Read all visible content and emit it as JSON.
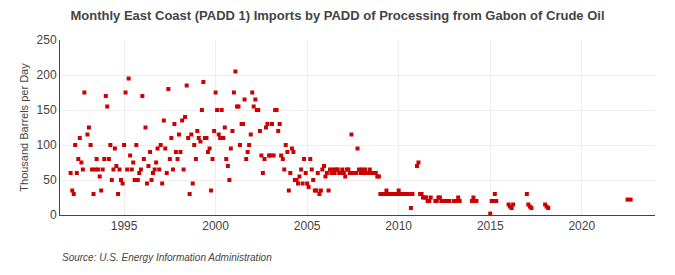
{
  "chart_data": {
    "type": "scatter",
    "title": "Monthly East Coast (PADD 1) Imports by PADD of Processing from Gabon of Crude Oil",
    "ylabel": "Thousand Barrels per Day",
    "annotations": [
      "Source: U.S. Energy Information Administration"
    ],
    "color": "#cc0000",
    "marker": "square",
    "grid": true,
    "xlim": [
      1991.5,
      2024
    ],
    "ylim": [
      0,
      250
    ],
    "xticks": [
      1995,
      2000,
      2005,
      2010,
      2015,
      2020
    ],
    "yticks": [
      0,
      50,
      100,
      150,
      200,
      250
    ],
    "x": [
      1992.08,
      1992.17,
      1992.25,
      1992.33,
      1992.42,
      1992.5,
      1992.58,
      1992.67,
      1992.75,
      1992.83,
      1993.0,
      1993.08,
      1993.17,
      1993.25,
      1993.33,
      1993.42,
      1993.5,
      1993.58,
      1993.67,
      1993.75,
      1993.83,
      1993.92,
      1994.0,
      1994.08,
      1994.17,
      1994.25,
      1994.33,
      1994.42,
      1994.5,
      1994.58,
      1994.67,
      1994.75,
      1994.83,
      1994.92,
      1995.0,
      1995.08,
      1995.17,
      1995.25,
      1995.33,
      1995.42,
      1995.5,
      1995.58,
      1995.67,
      1995.75,
      1995.83,
      1995.92,
      1996.0,
      1996.08,
      1996.17,
      1996.25,
      1996.33,
      1996.42,
      1996.5,
      1996.58,
      1996.67,
      1996.75,
      1996.83,
      1996.92,
      1997.0,
      1997.08,
      1997.17,
      1997.25,
      1997.33,
      1997.42,
      1997.5,
      1997.58,
      1997.67,
      1997.75,
      1997.83,
      1997.92,
      1998.0,
      1998.08,
      1998.17,
      1998.25,
      1998.33,
      1998.42,
      1998.5,
      1998.58,
      1998.67,
      1998.75,
      1998.83,
      1998.92,
      1999.0,
      1999.08,
      1999.17,
      1999.25,
      1999.33,
      1999.42,
      1999.5,
      1999.58,
      1999.67,
      1999.75,
      1999.83,
      1999.92,
      2000.0,
      2000.08,
      2000.17,
      2000.25,
      2000.33,
      2000.42,
      2000.5,
      2000.58,
      2000.67,
      2000.75,
      2000.83,
      2000.92,
      2001.0,
      2001.08,
      2001.17,
      2001.25,
      2001.33,
      2001.42,
      2001.5,
      2001.58,
      2001.67,
      2001.75,
      2001.83,
      2001.92,
      2002.0,
      2002.08,
      2002.17,
      2002.25,
      2002.33,
      2002.42,
      2002.5,
      2002.58,
      2002.67,
      2002.75,
      2002.83,
      2002.92,
      2003.0,
      2003.08,
      2003.17,
      2003.25,
      2003.33,
      2003.42,
      2003.5,
      2003.58,
      2003.67,
      2003.75,
      2003.83,
      2003.92,
      2004.0,
      2004.08,
      2004.17,
      2004.25,
      2004.33,
      2004.42,
      2004.5,
      2004.58,
      2004.67,
      2004.75,
      2004.83,
      2004.92,
      2005.0,
      2005.08,
      2005.17,
      2005.25,
      2005.33,
      2005.42,
      2005.5,
      2005.58,
      2005.67,
      2005.75,
      2005.83,
      2005.92,
      2006.0,
      2006.08,
      2006.17,
      2006.25,
      2006.33,
      2006.42,
      2006.5,
      2006.58,
      2006.67,
      2006.75,
      2006.83,
      2006.92,
      2007.0,
      2007.08,
      2007.17,
      2007.25,
      2007.33,
      2007.42,
      2007.5,
      2007.58,
      2007.67,
      2007.75,
      2007.83,
      2007.92,
      2008.0,
      2008.08,
      2008.17,
      2008.25,
      2008.33,
      2008.42,
      2008.5,
      2008.58,
      2008.67,
      2008.75,
      2008.83,
      2008.92,
      2009.0,
      2009.08,
      2009.17,
      2009.25,
      2009.33,
      2009.42,
      2009.5,
      2009.58,
      2009.67,
      2009.75,
      2009.83,
      2009.92,
      2010.0,
      2010.08,
      2010.17,
      2010.25,
      2010.33,
      2010.42,
      2010.5,
      2010.58,
      2010.67,
      2010.75,
      2011.0,
      2011.08,
      2011.17,
      2011.25,
      2011.33,
      2011.42,
      2011.5,
      2011.58,
      2011.67,
      2011.75,
      2012.0,
      2012.08,
      2012.17,
      2012.25,
      2012.33,
      2012.42,
      2012.5,
      2012.58,
      2012.67,
      2012.75,
      2013.0,
      2013.08,
      2013.17,
      2013.25,
      2013.33,
      2014.0,
      2014.08,
      2014.17,
      2014.25,
      2015.0,
      2015.08,
      2015.17,
      2015.25,
      2015.33,
      2016.0,
      2016.08,
      2016.17,
      2016.25,
      2017.0,
      2017.08,
      2017.17,
      2017.25,
      2018.0,
      2018.08,
      2018.17,
      2022.5,
      2022.67
    ],
    "values": [
      60,
      35,
      30,
      100,
      60,
      80,
      110,
      75,
      65,
      175,
      115,
      125,
      100,
      65,
      30,
      65,
      80,
      65,
      55,
      35,
      65,
      80,
      170,
      155,
      80,
      100,
      50,
      65,
      95,
      70,
      30,
      65,
      50,
      45,
      100,
      175,
      65,
      195,
      85,
      65,
      75,
      50,
      100,
      50,
      60,
      65,
      170,
      80,
      125,
      45,
      70,
      90,
      50,
      60,
      65,
      75,
      95,
      65,
      100,
      45,
      135,
      95,
      60,
      180,
      80,
      110,
      65,
      130,
      90,
      80,
      115,
      90,
      135,
      65,
      140,
      185,
      110,
      30,
      115,
      45,
      100,
      80,
      120,
      110,
      105,
      150,
      190,
      110,
      110,
      90,
      95,
      35,
      80,
      120,
      175,
      150,
      115,
      110,
      150,
      110,
      125,
      80,
      70,
      50,
      95,
      120,
      175,
      205,
      155,
      155,
      100,
      130,
      130,
      165,
      80,
      90,
      100,
      115,
      175,
      155,
      165,
      150,
      150,
      120,
      85,
      60,
      80,
      125,
      130,
      85,
      85,
      130,
      85,
      150,
      150,
      120,
      130,
      85,
      80,
      65,
      100,
      90,
      35,
      60,
      95,
      90,
      50,
      50,
      45,
      55,
      65,
      45,
      80,
      60,
      45,
      40,
      80,
      65,
      50,
      35,
      35,
      60,
      30,
      35,
      65,
      70,
      55,
      60,
      35,
      65,
      60,
      65,
      60,
      65,
      65,
      60,
      60,
      65,
      60,
      55,
      65,
      65,
      60,
      115,
      60,
      60,
      60,
      95,
      65,
      60,
      65,
      60,
      65,
      60,
      60,
      65,
      60,
      60,
      60,
      60,
      55,
      55,
      30,
      30,
      30,
      30,
      35,
      30,
      30,
      30,
      30,
      30,
      30,
      30,
      35,
      30,
      30,
      30,
      30,
      30,
      30,
      30,
      10,
      30,
      70,
      75,
      30,
      30,
      25,
      25,
      25,
      20,
      20,
      25,
      20,
      20,
      25,
      25,
      20,
      20,
      20,
      20,
      20,
      20,
      20,
      20,
      20,
      25,
      20,
      20,
      25,
      20,
      20,
      2,
      20,
      20,
      30,
      20,
      15,
      12,
      10,
      15,
      30,
      15,
      12,
      10,
      15,
      12,
      10,
      22,
      22
    ]
  }
}
